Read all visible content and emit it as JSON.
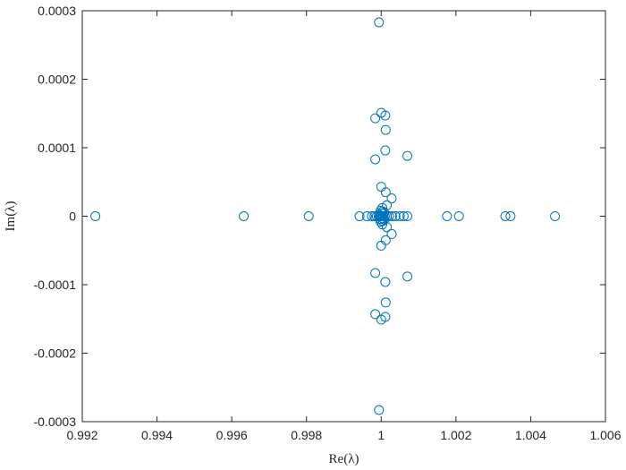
{
  "chart_data": {
    "type": "scatter",
    "xlabel": "Re(λ)",
    "ylabel": "Im(λ)",
    "xlim": [
      0.992,
      1.006
    ],
    "ylim": [
      -0.0003,
      0.0003
    ],
    "xticks": [
      0.992,
      0.994,
      0.996,
      0.998,
      1,
      1.002,
      1.004,
      1.006
    ],
    "xtick_labels": [
      "0.992",
      "0.994",
      "0.996",
      "0.998",
      "1",
      "1.002",
      "1.004",
      "1.006"
    ],
    "yticks": [
      -0.0003,
      -0.0002,
      -0.0001,
      0,
      0.0001,
      0.0002,
      0.0003
    ],
    "ytick_labels": [
      "-0.0003",
      "-0.0002",
      "-0.0001",
      "0",
      "0.0001",
      "0.0002",
      "0.0003"
    ],
    "grid": false,
    "marker": "open-circle",
    "marker_color": "#0072BD",
    "points": [
      [
        0.99235,
        0
      ],
      [
        0.99632,
        0
      ],
      [
        0.99806,
        0
      ],
      [
        0.99942,
        0
      ],
      [
        0.99962,
        0
      ],
      [
        0.99975,
        0
      ],
      [
        0.99982,
        0
      ],
      [
        0.99988,
        0
      ],
      [
        0.99993,
        0
      ],
      [
        0.99997,
        0
      ],
      [
        1.0,
        0
      ],
      [
        1.00003,
        0
      ],
      [
        1.00006,
        0
      ],
      [
        1.0001,
        0
      ],
      [
        1.00015,
        0
      ],
      [
        1.00021,
        0
      ],
      [
        1.00029,
        0
      ],
      [
        1.00038,
        0
      ],
      [
        1.0005,
        0
      ],
      [
        1.0006,
        0
      ],
      [
        1.0007,
        0
      ],
      [
        1.00176,
        0
      ],
      [
        1.00208,
        0
      ],
      [
        1.00332,
        0
      ],
      [
        1.00346,
        0
      ],
      [
        1.00465,
        0
      ],
      [
        0.99994,
        2.5e-06
      ],
      [
        1.00002,
        4e-06
      ],
      [
        0.99997,
        -4e-06
      ],
      [
        1.00005,
        -3e-06
      ],
      [
        0.99994,
        0.000283
      ],
      [
        0.99994,
        -0.000283
      ],
      [
        1.0,
        0.000151
      ],
      [
        1.00011,
        0.000147
      ],
      [
        0.99984,
        0.000143
      ],
      [
        1.00012,
        0.000126
      ],
      [
        1.00011,
        9.6e-05
      ],
      [
        1.0007,
        8.8e-05
      ],
      [
        0.99984,
        8.3e-05
      ],
      [
        1.0,
        4.3e-05
      ],
      [
        1.00012,
        3.5e-05
      ],
      [
        1.00028,
        2.6e-05
      ],
      [
        1.00015,
        1.6e-05
      ],
      [
        1.00003,
        1.2e-05
      ],
      [
        0.99998,
        8e-06
      ],
      [
        1.00004,
        7e-06
      ],
      [
        1.00008,
        5e-06
      ],
      [
        1.0,
        -0.000151
      ],
      [
        1.00011,
        -0.000147
      ],
      [
        0.99984,
        -0.000143
      ],
      [
        1.00012,
        -0.000126
      ],
      [
        1.00011,
        -9.6e-05
      ],
      [
        1.0007,
        -8.8e-05
      ],
      [
        0.99984,
        -8.3e-05
      ],
      [
        1.0,
        -4.3e-05
      ],
      [
        1.00012,
        -3.5e-05
      ],
      [
        1.00028,
        -2.6e-05
      ],
      [
        1.00015,
        -1.6e-05
      ],
      [
        1.00003,
        -1.2e-05
      ],
      [
        0.99998,
        -8e-06
      ],
      [
        1.00004,
        -7e-06
      ],
      [
        1.00008,
        -5e-06
      ]
    ]
  }
}
